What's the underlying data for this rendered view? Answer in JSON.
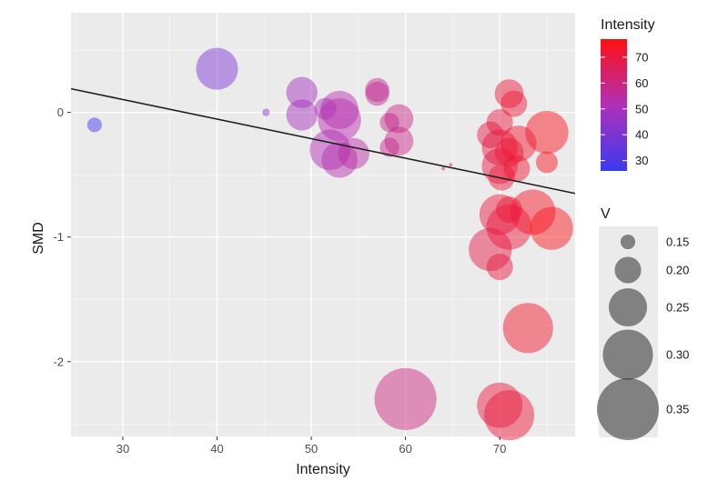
{
  "chart_data": {
    "type": "scatter",
    "title": "",
    "xlabel": "Intensity",
    "ylabel": "SMD",
    "xlim": [
      24.5,
      78
    ],
    "ylim": [
      -2.6,
      0.8
    ],
    "x_ticks": [
      30,
      40,
      50,
      60,
      70
    ],
    "x_tick_labels": [
      "30",
      "40",
      "50",
      "60",
      "70"
    ],
    "y_ticks": [
      0,
      -1,
      -2
    ],
    "y_tick_labels": [
      "0",
      "-1",
      "-2"
    ],
    "grid": true,
    "trend_line": {
      "x": [
        24.5,
        78
      ],
      "y": [
        0.19,
        -0.65
      ]
    },
    "color_legend": {
      "title": "Intensity",
      "min": 26,
      "max": 77,
      "ticks": [
        70,
        60,
        50,
        40,
        30
      ],
      "tick_labels": [
        "70",
        "60",
        "50",
        "40",
        "30"
      ],
      "colors": {
        "low": "#3a3af0",
        "mid": "#b030b8",
        "high": "#ff1010"
      }
    },
    "size_legend": {
      "title": "V",
      "values": [
        0.15,
        0.2,
        0.25,
        0.3,
        0.35
      ],
      "labels": [
        "0.15",
        "0.20",
        "0.25",
        "0.30",
        "0.35"
      ]
    },
    "points": [
      {
        "x": 27,
        "y": -0.1,
        "v": 0.15
      },
      {
        "x": 40,
        "y": 0.35,
        "v": 0.265
      },
      {
        "x": 45.2,
        "y": 0.0,
        "v": 0.12
      },
      {
        "x": 49,
        "y": 0.16,
        "v": 0.22
      },
      {
        "x": 49,
        "y": -0.02,
        "v": 0.22
      },
      {
        "x": 51.5,
        "y": 0.03,
        "v": 0.18
      },
      {
        "x": 52,
        "y": -0.3,
        "v": 0.26
      },
      {
        "x": 53,
        "y": 0.02,
        "v": 0.25
      },
      {
        "x": 53,
        "y": -0.06,
        "v": 0.27
      },
      {
        "x": 53,
        "y": -0.38,
        "v": 0.24
      },
      {
        "x": 54.5,
        "y": -0.33,
        "v": 0.22
      },
      {
        "x": 57,
        "y": 0.18,
        "v": 0.19
      },
      {
        "x": 57,
        "y": 0.15,
        "v": 0.19
      },
      {
        "x": 58.3,
        "y": -0.08,
        "v": 0.17
      },
      {
        "x": 58.3,
        "y": -0.28,
        "v": 0.17
      },
      {
        "x": 59.3,
        "y": -0.05,
        "v": 0.21
      },
      {
        "x": 59.3,
        "y": -0.23,
        "v": 0.21
      },
      {
        "x": 64,
        "y": -0.45,
        "v": 0.1
      },
      {
        "x": 64.8,
        "y": -0.42,
        "v": 0.09
      },
      {
        "x": 60,
        "y": -2.3,
        "v": 0.35
      },
      {
        "x": 69,
        "y": -0.18,
        "v": 0.2
      },
      {
        "x": 70,
        "y": -0.08,
        "v": 0.2
      },
      {
        "x": 70,
        "y": -0.28,
        "v": 0.24
      },
      {
        "x": 70,
        "y": -0.43,
        "v": 0.24
      },
      {
        "x": 70.2,
        "y": -0.52,
        "v": 0.2
      },
      {
        "x": 71,
        "y": 0.15,
        "v": 0.21
      },
      {
        "x": 71.5,
        "y": 0.07,
        "v": 0.2
      },
      {
        "x": 71,
        "y": -0.32,
        "v": 0.21
      },
      {
        "x": 72,
        "y": -0.25,
        "v": 0.24
      },
      {
        "x": 71.8,
        "y": -0.45,
        "v": 0.2
      },
      {
        "x": 70,
        "y": -0.82,
        "v": 0.26
      },
      {
        "x": 71,
        "y": -0.78,
        "v": 0.2
      },
      {
        "x": 71,
        "y": -0.92,
        "v": 0.28
      },
      {
        "x": 73.5,
        "y": -0.8,
        "v": 0.28
      },
      {
        "x": 75,
        "y": -0.16,
        "v": 0.27
      },
      {
        "x": 75,
        "y": -0.4,
        "v": 0.18
      },
      {
        "x": 75.5,
        "y": -0.93,
        "v": 0.27
      },
      {
        "x": 69,
        "y": -1.1,
        "v": 0.27
      },
      {
        "x": 70,
        "y": -1.24,
        "v": 0.2
      },
      {
        "x": 73,
        "y": -1.73,
        "v": 0.3
      },
      {
        "x": 70,
        "y": -2.35,
        "v": 0.28
      },
      {
        "x": 71,
        "y": -2.43,
        "v": 0.3
      }
    ]
  }
}
